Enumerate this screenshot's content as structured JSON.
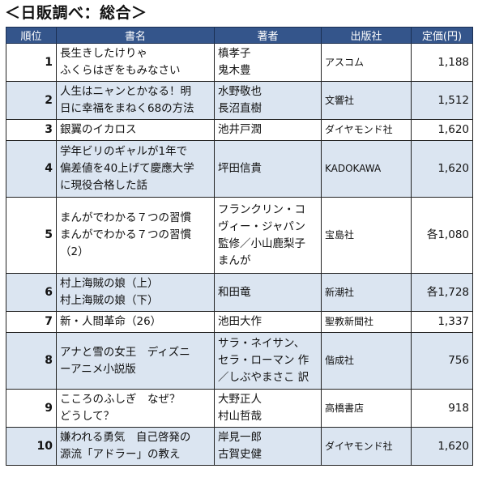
{
  "title": "＜日販調べ：総合＞",
  "headers": {
    "rank": "順位",
    "title": "書名",
    "author": "著者",
    "publisher": "出版社",
    "price": "定価(円)"
  },
  "rows": [
    {
      "rank": "1",
      "title": [
        "長生きしたけりゃ",
        "ふくらはぎをもみなさい"
      ],
      "author": [
        "槙孝子",
        "鬼木豊"
      ],
      "publisher": "アスコム",
      "price": "1,188"
    },
    {
      "rank": "2",
      "title": [
        "人生はニャンとかなる！明",
        "日に幸福をまねく68の方法"
      ],
      "author": [
        "水野敬也",
        "長沼直樹"
      ],
      "publisher": "文響社",
      "price": "1,512"
    },
    {
      "rank": "3",
      "title": [
        "銀翼のイカロス"
      ],
      "author": [
        "池井戸潤"
      ],
      "publisher": "ダイヤモンド社",
      "price": "1,620"
    },
    {
      "rank": "4",
      "title": [
        "学年ビリのギャルが1年で",
        "偏差値を40上げて慶應大学",
        "に現役合格した話"
      ],
      "author": [
        "坪田信貴"
      ],
      "publisher": "KADOKAWA",
      "price": "1,620"
    },
    {
      "rank": "5",
      "title": [
        "まんがでわかる７つの習慣",
        "まんがでわかる７つの習慣",
        "（2）"
      ],
      "author": [
        "フランクリン・コ",
        "ヴィー・ジャパン",
        "監修／小山鹿梨子",
        "まんが"
      ],
      "publisher": "宝島社",
      "price": "各1,080"
    },
    {
      "rank": "6",
      "title": [
        "村上海賊の娘（上）",
        "村上海賊の娘（下）"
      ],
      "author": [
        "和田竜"
      ],
      "publisher": "新潮社",
      "price": "各1,728"
    },
    {
      "rank": "7",
      "title": [
        "新・人間革命（26）"
      ],
      "author": [
        "池田大作"
      ],
      "publisher": "聖教新聞社",
      "price": "1,337"
    },
    {
      "rank": "8",
      "title": [
        "アナと雪の女王　ディズニ",
        "ーアニメ小説版"
      ],
      "author": [
        "サラ・ネイサン、",
        "セラ・ローマン 作",
        "／しぶやまさこ 訳"
      ],
      "publisher": "偕成社",
      "price": "756"
    },
    {
      "rank": "9",
      "title": [
        "こころのふしぎ　なぜ？",
        "どうして？"
      ],
      "author": [
        "大野正人",
        "村山哲哉"
      ],
      "publisher": "高橋書店",
      "price": "918"
    },
    {
      "rank": "10",
      "title": [
        "嫌われる勇気　自己啓発の",
        "源流「アドラー」の教え"
      ],
      "author": [
        "岸見一郎",
        "古賀史健"
      ],
      "publisher": "ダイヤモンド社",
      "price": "1,620"
    }
  ]
}
